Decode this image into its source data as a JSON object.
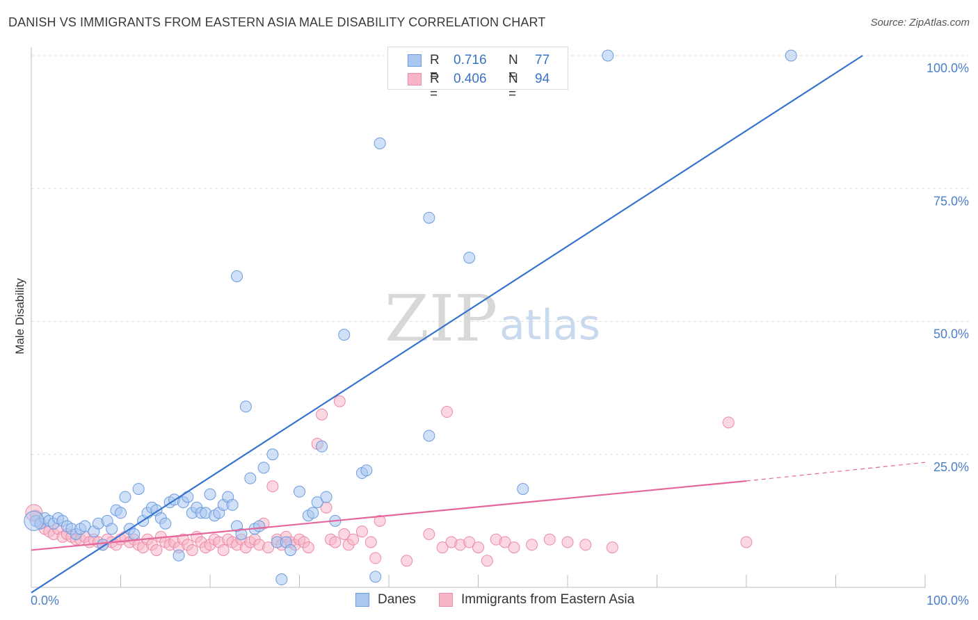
{
  "title": "DANISH VS IMMIGRANTS FROM EASTERN ASIA MALE DISABILITY CORRELATION CHART",
  "source": "Source: ZipAtlas.com",
  "watermark": {
    "zip": "ZIP",
    "atlas": "atlas"
  },
  "legend_top": [
    {
      "r_label": "R =",
      "r_value": "0.716",
      "n_label": "N =",
      "n_value": "77"
    },
    {
      "r_label": "R =",
      "r_value": "0.406",
      "n_label": "N =",
      "n_value": "94"
    }
  ],
  "legend_bottom": [
    {
      "label": "Danes"
    },
    {
      "label": "Immigrants from Eastern Asia"
    }
  ],
  "colors": {
    "danes_fill": "#a9c7ef",
    "danes_stroke": "#6b9be0",
    "danes_line": "#3474d0",
    "imm_fill": "#f6b6c8",
    "imm_stroke": "#ec8aa8",
    "imm_line": "#e5669a",
    "tick_text": "#4a7fc9",
    "grid": "#dddddd"
  },
  "chart_data": {
    "type": "scatter",
    "title": "DANISH VS IMMIGRANTS FROM EASTERN ASIA MALE DISABILITY CORRELATION CHART",
    "xlabel": "",
    "ylabel": "Male Disability",
    "xlim": [
      0,
      100
    ],
    "ylim": [
      0,
      100
    ],
    "x_tick_labels": [
      "0.0%",
      "100.0%"
    ],
    "y_ticks": [
      25,
      50,
      75,
      100
    ],
    "y_tick_labels": [
      "25.0%",
      "50.0%",
      "75.0%",
      "100.0%"
    ],
    "grid": true,
    "series": [
      {
        "name": "Danes",
        "r": 0.716,
        "n": 77,
        "trend": {
          "x": [
            0,
            93
          ],
          "y": [
            -1,
            100
          ]
        },
        "points": [
          [
            0.5,
            12.5
          ],
          [
            1,
            12
          ],
          [
            1.5,
            13
          ],
          [
            2,
            12.5
          ],
          [
            2.5,
            12
          ],
          [
            3,
            13
          ],
          [
            3.5,
            12.5
          ],
          [
            4,
            11.5
          ],
          [
            4.5,
            11
          ],
          [
            5,
            10
          ],
          [
            5.5,
            11
          ],
          [
            6,
            11.5
          ],
          [
            7,
            10.5
          ],
          [
            7.5,
            12
          ],
          [
            8,
            8
          ],
          [
            8.5,
            12.5
          ],
          [
            9,
            11
          ],
          [
            9.5,
            14.5
          ],
          [
            10,
            14
          ],
          [
            10.5,
            17
          ],
          [
            11,
            11
          ],
          [
            11.5,
            10
          ],
          [
            12,
            18.5
          ],
          [
            12.5,
            12.5
          ],
          [
            13,
            14
          ],
          [
            13.5,
            15
          ],
          [
            14,
            14.5
          ],
          [
            14.5,
            13
          ],
          [
            15,
            12
          ],
          [
            15.5,
            16
          ],
          [
            16,
            16.5
          ],
          [
            16.5,
            6
          ],
          [
            17,
            16
          ],
          [
            17.5,
            17
          ],
          [
            18,
            14
          ],
          [
            18.5,
            15
          ],
          [
            19,
            14
          ],
          [
            19.5,
            14
          ],
          [
            20,
            17.5
          ],
          [
            20.5,
            13.5
          ],
          [
            21,
            14
          ],
          [
            21.5,
            15.5
          ],
          [
            22,
            17
          ],
          [
            22.5,
            15.5
          ],
          [
            23,
            11.5
          ],
          [
            23.5,
            10
          ],
          [
            24,
            34
          ],
          [
            24.5,
            20.5
          ],
          [
            25,
            11
          ],
          [
            25.5,
            11.5
          ],
          [
            26,
            22.5
          ],
          [
            27,
            25
          ],
          [
            27.5,
            8.5
          ],
          [
            28,
            1.5
          ],
          [
            28.5,
            8.5
          ],
          [
            29,
            7
          ],
          [
            30,
            18
          ],
          [
            31,
            13.5
          ],
          [
            31.5,
            14
          ],
          [
            32,
            16
          ],
          [
            32.5,
            26.5
          ],
          [
            33,
            17
          ],
          [
            34,
            12.5
          ],
          [
            35,
            47.5
          ],
          [
            37,
            21.5
          ],
          [
            37.5,
            22
          ],
          [
            38.5,
            2
          ],
          [
            39,
            83.5
          ],
          [
            44.5,
            28.5
          ],
          [
            44.5,
            69.5
          ],
          [
            49,
            62
          ],
          [
            54,
            100
          ],
          [
            54.5,
            100
          ],
          [
            55,
            18.5
          ],
          [
            64.5,
            100
          ],
          [
            85,
            100
          ],
          [
            23,
            58.5
          ]
        ]
      },
      {
        "name": "Immigrants from Eastern Asia",
        "r": 0.406,
        "n": 94,
        "trend": {
          "x": [
            0,
            80
          ],
          "y": [
            7,
            20
          ]
        },
        "trend_dashed": {
          "x": [
            80,
            100
          ],
          "y": [
            20,
            23.5
          ]
        },
        "points": [
          [
            0.5,
            13.5
          ],
          [
            1,
            12
          ],
          [
            1.5,
            11
          ],
          [
            2,
            10.5
          ],
          [
            2.5,
            10
          ],
          [
            3,
            11
          ],
          [
            3.5,
            9.5
          ],
          [
            4,
            10
          ],
          [
            4.5,
            9.5
          ],
          [
            5,
            9
          ],
          [
            5.5,
            9
          ],
          [
            6,
            9.5
          ],
          [
            6.5,
            8.5
          ],
          [
            7,
            9
          ],
          [
            7.5,
            8.5
          ],
          [
            8,
            8
          ],
          [
            8.5,
            9
          ],
          [
            9,
            8.5
          ],
          [
            9.5,
            8
          ],
          [
            10,
            9
          ],
          [
            10.5,
            9.5
          ],
          [
            11,
            8.5
          ],
          [
            11.5,
            9
          ],
          [
            12,
            8
          ],
          [
            12.5,
            7.5
          ],
          [
            13,
            9
          ],
          [
            13.5,
            8
          ],
          [
            14,
            7
          ],
          [
            14.5,
            9.5
          ],
          [
            15,
            8.5
          ],
          [
            15.5,
            8
          ],
          [
            16,
            8.5
          ],
          [
            16.5,
            7.5
          ],
          [
            17,
            9
          ],
          [
            17.5,
            8
          ],
          [
            18,
            7
          ],
          [
            18.5,
            9.5
          ],
          [
            19,
            8.5
          ],
          [
            19.5,
            7.5
          ],
          [
            20,
            8
          ],
          [
            20.5,
            9
          ],
          [
            21,
            8.5
          ],
          [
            21.5,
            7
          ],
          [
            22,
            9
          ],
          [
            22.5,
            8.5
          ],
          [
            23,
            8
          ],
          [
            23.5,
            9
          ],
          [
            24,
            7.5
          ],
          [
            24.5,
            8.5
          ],
          [
            25,
            9
          ],
          [
            25.5,
            8
          ],
          [
            26,
            12
          ],
          [
            26.5,
            7.5
          ],
          [
            27,
            19
          ],
          [
            27.5,
            9
          ],
          [
            28,
            8
          ],
          [
            28.5,
            9.5
          ],
          [
            29,
            8.5
          ],
          [
            29.5,
            8
          ],
          [
            30,
            9
          ],
          [
            30.5,
            8.5
          ],
          [
            31,
            7.5
          ],
          [
            32,
            27
          ],
          [
            32.5,
            32.5
          ],
          [
            33,
            15
          ],
          [
            33.5,
            9
          ],
          [
            34,
            8.5
          ],
          [
            34.5,
            35
          ],
          [
            35,
            10
          ],
          [
            35.5,
            8
          ],
          [
            36,
            9
          ],
          [
            37,
            10.5
          ],
          [
            38,
            8.5
          ],
          [
            38.5,
            5.5
          ],
          [
            39,
            12.5
          ],
          [
            42,
            5
          ],
          [
            44.5,
            10
          ],
          [
            46,
            7.5
          ],
          [
            46.5,
            33
          ],
          [
            47,
            8.5
          ],
          [
            48,
            8
          ],
          [
            49,
            8.5
          ],
          [
            50,
            7.5
          ],
          [
            51,
            5
          ],
          [
            52,
            9
          ],
          [
            53,
            8.5
          ],
          [
            54,
            7.5
          ],
          [
            56,
            8
          ],
          [
            58,
            9
          ],
          [
            60,
            8.5
          ],
          [
            62,
            8
          ],
          [
            65,
            7.5
          ],
          [
            78,
            31
          ],
          [
            80,
            8.5
          ]
        ]
      }
    ]
  }
}
